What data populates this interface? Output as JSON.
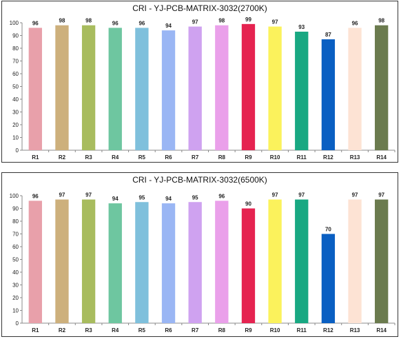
{
  "chart_data": [
    {
      "type": "bar",
      "title": "CRI - YJ-PCB-MATRIX-3032(2700K)",
      "categories": [
        "R1",
        "R2",
        "R3",
        "R4",
        "R5",
        "R6",
        "R7",
        "R8",
        "R9",
        "R10",
        "R11",
        "R12",
        "R13",
        "R14"
      ],
      "values": [
        96,
        98,
        98,
        96,
        96,
        94,
        97,
        98,
        99,
        97,
        93,
        87,
        96,
        98
      ],
      "colors": [
        "#e8a0aa",
        "#cdb07c",
        "#a8bc5e",
        "#6ec6a0",
        "#7fc0dc",
        "#9ab6f4",
        "#cfa2f0",
        "#eaa0ea",
        "#e52350",
        "#fbf25c",
        "#18a882",
        "#0a5fc2",
        "#fde3d4",
        "#6b7b4e"
      ],
      "ylim": [
        0,
        100
      ],
      "yticks": [
        0,
        10,
        20,
        30,
        40,
        50,
        60,
        70,
        80,
        90,
        100
      ],
      "grid": false,
      "data_labels": true
    },
    {
      "type": "bar",
      "title": "CRI - YJ-PCB-MATRIX-3032(6500K)",
      "categories": [
        "R1",
        "R2",
        "R3",
        "R4",
        "R5",
        "R6",
        "R7",
        "R8",
        "R9",
        "R10",
        "R11",
        "R12",
        "R13",
        "R14"
      ],
      "values": [
        96,
        97,
        97,
        94,
        95,
        94,
        95,
        96,
        90,
        97,
        97,
        70,
        97,
        97
      ],
      "colors": [
        "#e8a0aa",
        "#cdb07c",
        "#a8bc5e",
        "#6ec6a0",
        "#7fc0dc",
        "#9ab6f4",
        "#cfa2f0",
        "#eaa0ea",
        "#e52350",
        "#fbf25c",
        "#18a882",
        "#0a5fc2",
        "#fde3d4",
        "#6b7b4e"
      ],
      "ylim": [
        0,
        100
      ],
      "yticks": [
        0,
        10,
        20,
        30,
        40,
        50,
        60,
        70,
        80,
        90,
        100
      ],
      "grid": false,
      "data_labels": true
    }
  ]
}
